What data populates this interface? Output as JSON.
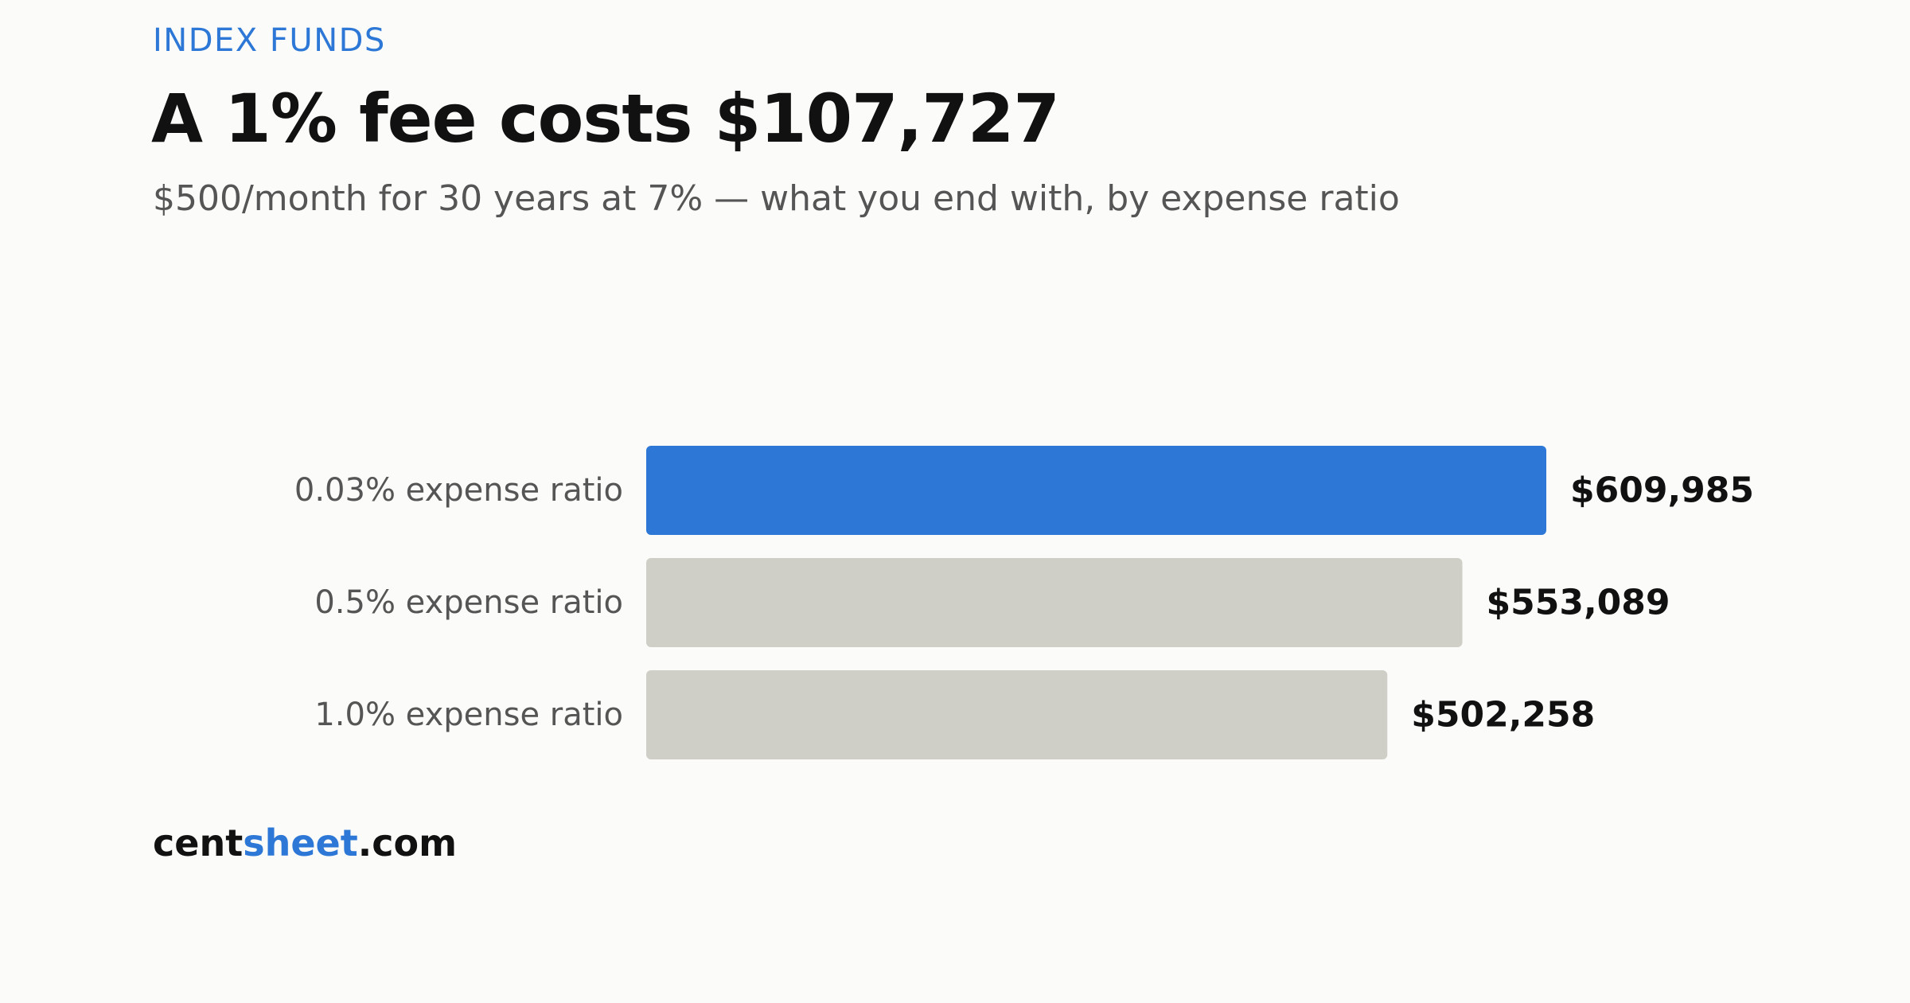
{
  "header": {
    "kicker": "INDEX FUNDS",
    "title": "A 1% fee costs $107,727",
    "subtitle": "$500/month for 30 years at 7% — what you end with, by expense ratio"
  },
  "brand": {
    "part1": "cent",
    "part2": "sheet",
    "part3": ".com"
  },
  "colors": {
    "accent": "#2d78d6",
    "muted_bar": "#cfcfc7"
  },
  "chart_data": {
    "type": "bar",
    "orientation": "horizontal",
    "categories": [
      "0.03% expense ratio",
      "0.5% expense ratio",
      "1.0% expense ratio"
    ],
    "values": [
      609985,
      553089,
      502258
    ],
    "value_labels": [
      "$609,985",
      "$553,089",
      "$502,258"
    ],
    "highlight_index": 0,
    "xlim": [
      0,
      609985
    ],
    "grid": false,
    "legend": "none"
  }
}
